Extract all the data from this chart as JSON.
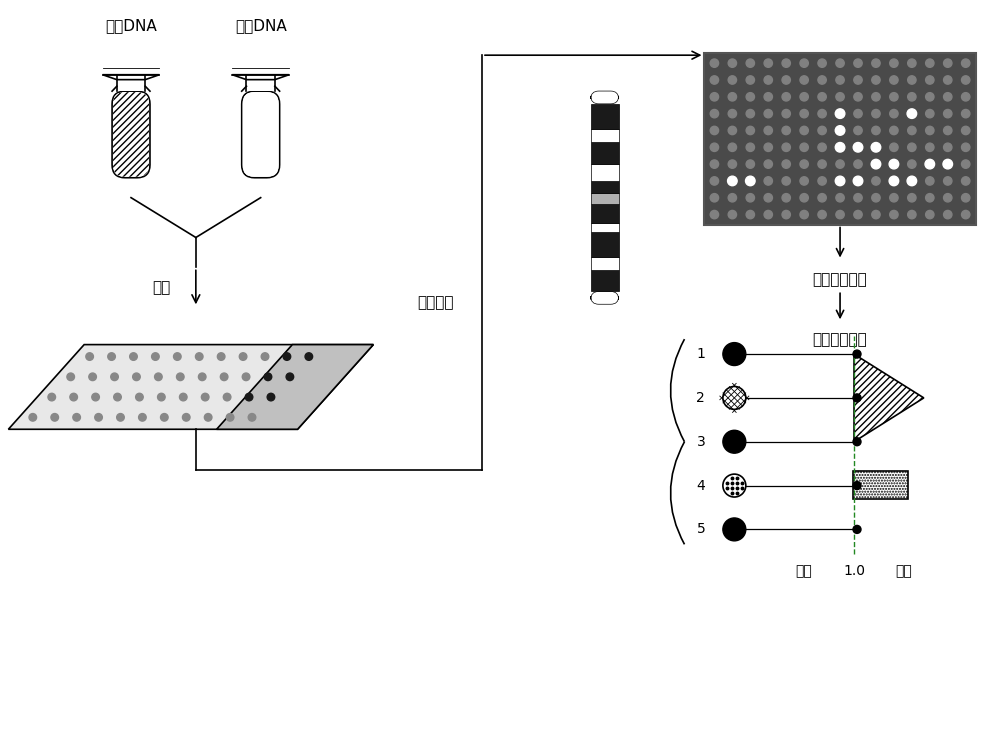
{
  "bg_color": "#ffffff",
  "text_color": "#000000",
  "label_tube1": "待测DNA",
  "label_tube2": "对照DNA",
  "label_hybrid": "杂交",
  "label_fluoro": "荧光镜检",
  "label_digital": "数字图像处理",
  "label_intensity": "荧光强度对比",
  "label_deletion": "缺失",
  "label_10": "1.0",
  "label_repeat": "重复",
  "label_rows": [
    "1",
    "2",
    "3",
    "4",
    "5"
  ],
  "font_size_label": 11,
  "font_size_small": 9,
  "font_size_medium": 10
}
